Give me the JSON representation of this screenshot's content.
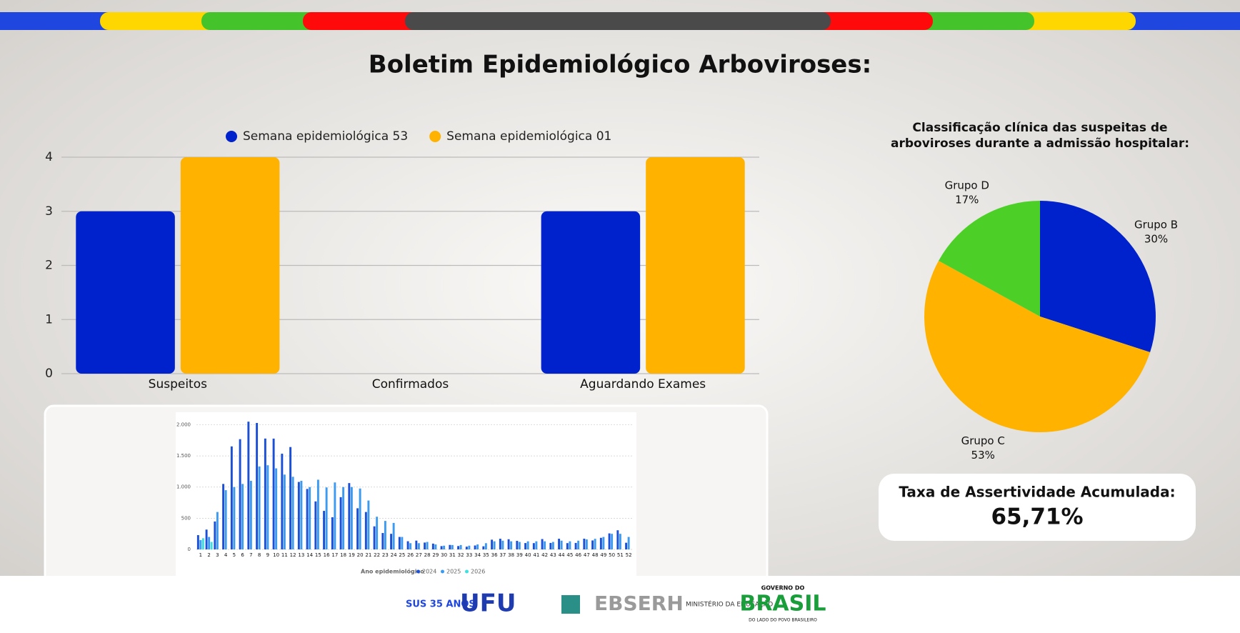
{
  "header": {
    "title": "Boletim Epidemiológico Arboviroses:"
  },
  "chart_data": [
    {
      "type": "bar",
      "categories": [
        "Suspeitos",
        "Confirmados",
        "Aguardando Exames"
      ],
      "series": [
        {
          "name": "Semana epidemiológica 53",
          "color": "#0022cc",
          "values": [
            3,
            0,
            3
          ]
        },
        {
          "name": "Semana epidemiológica 01",
          "color": "#ffb300",
          "values": [
            4,
            0,
            4
          ]
        }
      ],
      "ylim": [
        0,
        4
      ],
      "yticks": [
        0,
        1,
        2,
        3,
        4
      ],
      "grid": true,
      "legend": "top"
    },
    {
      "type": "pie",
      "title": "Classificação clínica das suspeitas de arboviroses durante a admissão hospitalar:",
      "categories": [
        "Grupo B",
        "Grupo C",
        "Grupo D"
      ],
      "values": [
        30,
        53,
        17
      ],
      "value_labels": [
        "30%",
        "53%",
        "17%"
      ],
      "colors": [
        "#0022cc",
        "#ffb300",
        "#4cd028"
      ]
    },
    {
      "type": "bar",
      "xlabel": "Ano epidemiológico",
      "categories": [
        "1",
        "2",
        "3",
        "4",
        "5",
        "6",
        "7",
        "8",
        "9",
        "10",
        "11",
        "12",
        "13",
        "14",
        "15",
        "16",
        "17",
        "18",
        "19",
        "20",
        "21",
        "22",
        "23",
        "24",
        "25",
        "26",
        "27",
        "28",
        "29",
        "30",
        "31",
        "32",
        "33",
        "34",
        "35",
        "36",
        "37",
        "38",
        "39",
        "40",
        "41",
        "42",
        "43",
        "44",
        "45",
        "46",
        "47",
        "48",
        "49",
        "50",
        "51",
        "52"
      ],
      "series": [
        {
          "name": "2024",
          "color": "#1a4fd6",
          "values": [
            229,
            318,
            448,
            1050,
            1652,
            1768,
            2049,
            2028,
            1778,
            1777,
            1535,
            1642,
            1082,
            970,
            770,
            618,
            516,
            838,
            1064,
            660,
            600,
            370,
            263,
            250,
            200,
            131,
            141,
            110,
            93,
            53,
            72,
            54,
            44,
            63,
            50,
            156,
            171,
            163,
            137,
            102,
            101,
            166,
            104,
            171,
            101,
            104,
            172,
            144,
            186,
            257,
            307,
            107
          ]
        },
        {
          "name": "2025",
          "color": "#3c9bf0",
          "values": [
            150,
            200,
            600,
            950,
            1000,
            1050,
            1100,
            1330,
            1350,
            1300,
            1200,
            1165,
            1100,
            1000,
            1118,
            994,
            1074,
            1000,
            1000,
            977,
            784,
            524,
            457,
            425,
            200,
            100,
            100,
            120,
            80,
            60,
            70,
            70,
            60,
            80,
            100,
            130,
            140,
            130,
            120,
            130,
            130,
            130,
            120,
            140,
            130,
            140,
            160,
            170,
            200,
            250,
            250,
            200
          ]
        },
        {
          "name": "2026",
          "color": "#3fe0e0",
          "values": [
            180,
            120,
            null,
            null,
            null,
            null,
            null,
            null,
            null,
            null,
            null,
            null,
            null,
            null,
            null,
            null,
            null,
            null,
            null,
            null,
            null,
            null,
            null,
            null,
            null,
            null,
            null,
            null,
            null,
            null,
            null,
            null,
            null,
            null,
            null,
            null,
            null,
            null,
            null,
            null,
            null,
            null,
            null,
            null,
            null,
            null,
            null,
            null,
            null,
            null,
            null,
            null
          ]
        }
      ],
      "ylim": [
        0,
        2200
      ],
      "yticks": [
        0,
        500,
        {
          "value": 1000,
          "label": "1.000"
        },
        {
          "value": 1500,
          "label": "1.500"
        },
        {
          "value": 2000,
          "label": "2.000"
        }
      ],
      "grid": true,
      "legend": "bottom"
    }
  ],
  "kpi": {
    "label": "Taxa de Assertividade Acumulada:",
    "value": "65,71%"
  },
  "footer": {
    "logos": [
      "SUS 35 ANOS",
      "UFU",
      "EBSERH",
      "MINISTÉRIO DA EDUCAÇÃO",
      "GOVERNO DO",
      "BRASIL",
      "DO LADO DO POVO BRASILEIRO"
    ]
  }
}
